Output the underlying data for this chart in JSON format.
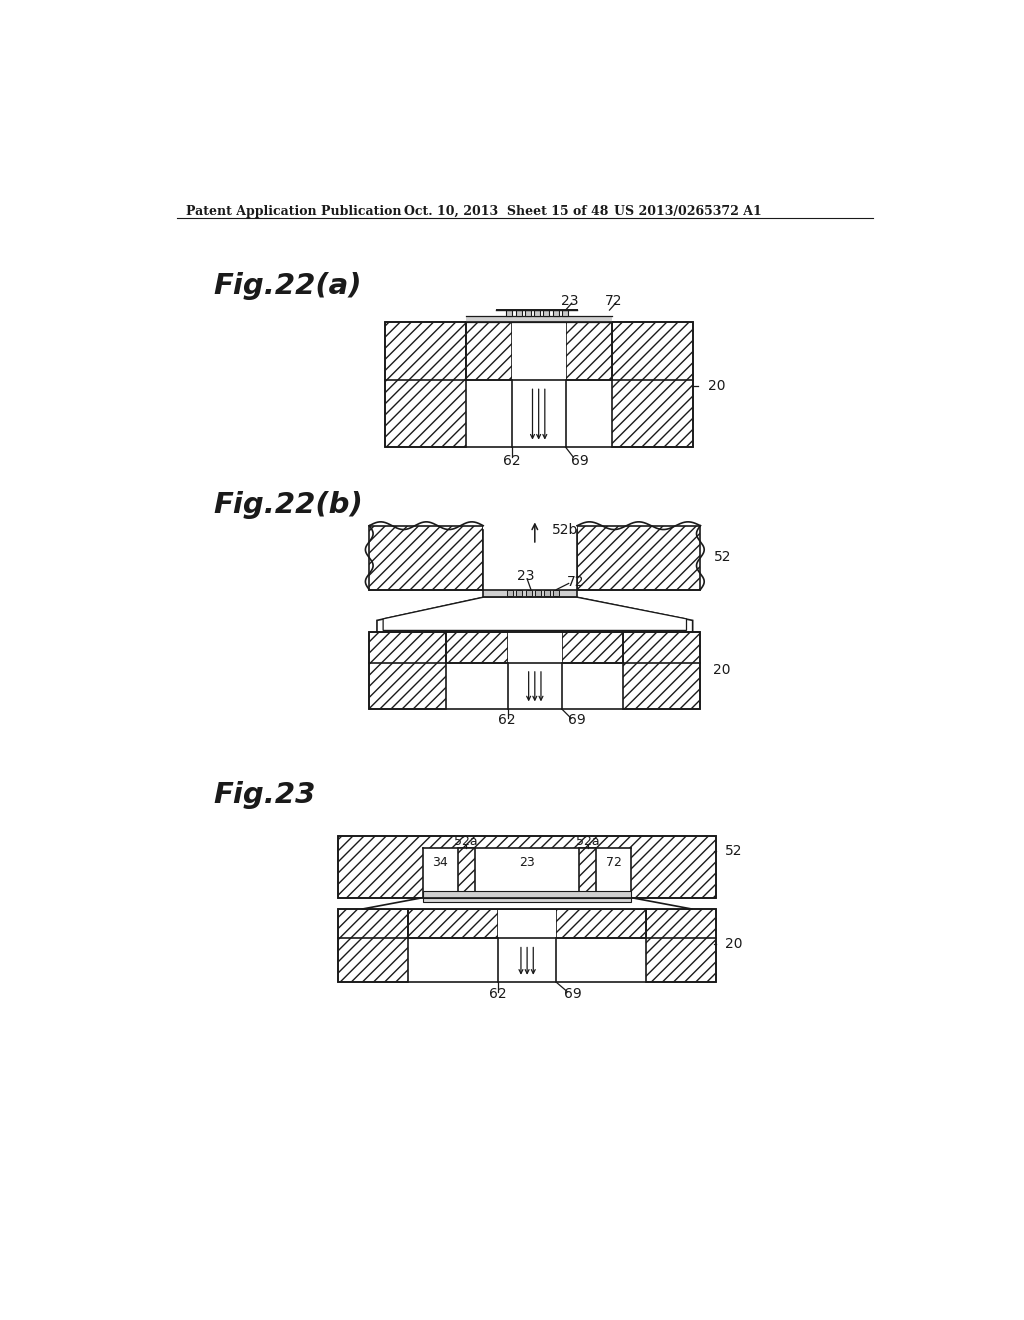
{
  "bg_color": "#ffffff",
  "line_color": "#1a1a1a",
  "header_left": "Patent Application Publication",
  "header_mid": "Oct. 10, 2013  Sheet 15 of 48",
  "header_right": "US 2013/0265372 A1",
  "fig22a_title": "Fig.22(a)",
  "fig22b_title": "Fig.22(b)",
  "fig23_title": "Fig.23"
}
